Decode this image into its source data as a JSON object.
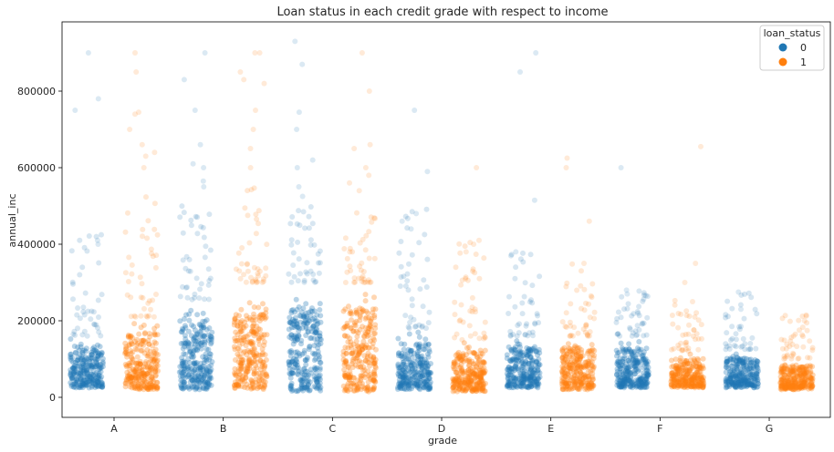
{
  "chart_data": {
    "type": "scatter",
    "subtype": "strip",
    "title": "Loan status in each credit grade with respect to income",
    "xlabel": "grade",
    "ylabel": "annual_inc",
    "categories": [
      "A",
      "B",
      "C",
      "D",
      "E",
      "F",
      "G"
    ],
    "yticks": [
      0,
      200000,
      400000,
      600000,
      800000
    ],
    "ytick_labels": [
      "0",
      "200000",
      "400000",
      "600000",
      "800000"
    ],
    "ylim": [
      -50000,
      980000
    ],
    "grid": false,
    "legend": {
      "title": "loan_status",
      "placement": "top-right",
      "entries": [
        {
          "label": "0",
          "color": "#1f77b4"
        },
        {
          "label": "1",
          "color": "#ff7f0e"
        }
      ]
    },
    "series": [
      {
        "status": "0",
        "color": "#1f77b4",
        "groups": [
          {
            "category": "A",
            "dense_min": 25000,
            "dense_max": 160000,
            "scatter_max": 440000,
            "outliers": [
              780000,
              750000,
              900000,
              410000,
              400000
            ]
          },
          {
            "category": "B",
            "dense_min": 20000,
            "dense_max": 255000,
            "scatter_max": 500000,
            "outliers": [
              900000,
              830000,
              750000,
              660000,
              610000,
              600000,
              565000,
              550000
            ]
          },
          {
            "category": "C",
            "dense_min": 15000,
            "dense_max": 300000,
            "scatter_max": 500000,
            "outliers": [
              930000,
              870000,
              745000,
              700000,
              620000,
              600000,
              550000,
              525000
            ]
          },
          {
            "category": "D",
            "dense_min": 20000,
            "dense_max": 180000,
            "scatter_max": 500000,
            "outliers": [
              750000,
              590000,
              480000,
              460000,
              440000
            ]
          },
          {
            "category": "E",
            "dense_min": 25000,
            "dense_max": 160000,
            "scatter_max": 380000,
            "outliers": [
              900000,
              850000,
              515000,
              380000,
              370000
            ]
          },
          {
            "category": "F",
            "dense_min": 25000,
            "dense_max": 160000,
            "scatter_max": 280000,
            "outliers": [
              600000,
              280000,
              270000
            ]
          },
          {
            "category": "G",
            "dense_min": 25000,
            "dense_max": 125000,
            "scatter_max": 275000,
            "outliers": [
              275000,
              230000
            ]
          }
        ]
      },
      {
        "status": "1",
        "color": "#ff7f0e",
        "groups": [
          {
            "category": "A",
            "dense_min": 20000,
            "dense_max": 210000,
            "scatter_max": 530000,
            "outliers": [
              900000,
              850000,
              745000,
              740000,
              700000,
              660000,
              640000,
              630000,
              600000
            ]
          },
          {
            "category": "B",
            "dense_min": 20000,
            "dense_max": 300000,
            "scatter_max": 560000,
            "outliers": [
              900000,
              900000,
              850000,
              830000,
              820000,
              750000,
              700000,
              650000,
              600000
            ]
          },
          {
            "category": "C",
            "dense_min": 15000,
            "dense_max": 300000,
            "scatter_max": 500000,
            "outliers": [
              900000,
              800000,
              660000,
              650000,
              600000,
              580000,
              560000,
              540000
            ]
          },
          {
            "category": "D",
            "dense_min": 15000,
            "dense_max": 150000,
            "scatter_max": 410000,
            "outliers": [
              600000,
              410000,
              400000,
              380000
            ]
          },
          {
            "category": "E",
            "dense_min": 20000,
            "dense_max": 160000,
            "scatter_max": 350000,
            "outliers": [
              625000,
              600000,
              460000,
              350000
            ]
          },
          {
            "category": "F",
            "dense_min": 25000,
            "dense_max": 120000,
            "scatter_max": 260000,
            "outliers": [
              655000,
              350000,
              300000,
              250000
            ]
          },
          {
            "category": "G",
            "dense_min": 20000,
            "dense_max": 100000,
            "scatter_max": 215000,
            "outliers": [
              215000,
              200000,
              160000
            ]
          }
        ]
      }
    ]
  }
}
